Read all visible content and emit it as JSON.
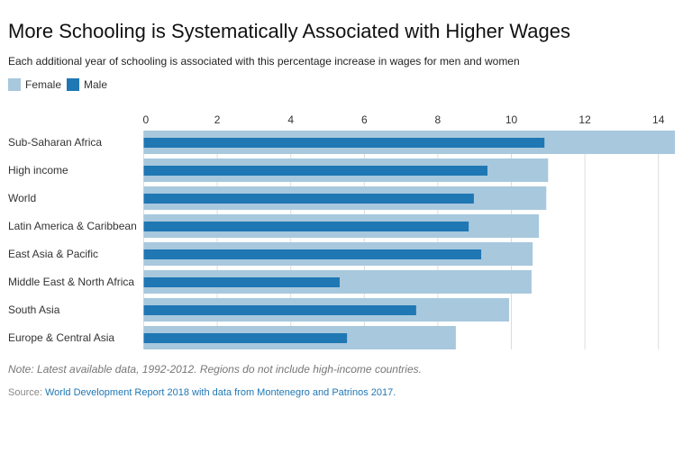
{
  "chart_data": {
    "type": "bar",
    "orientation": "horizontal",
    "title": "More Schooling is Systematically Associated with Higher Wages",
    "subtitle": "Each additional year of schooling is associated with this percentage increase in wages for men and women",
    "xlabel": "",
    "ylabel": "",
    "xlim": [
      0,
      14.5
    ],
    "xticks": [
      0,
      2,
      4,
      6,
      8,
      10,
      12,
      14
    ],
    "grid": true,
    "legend_position": "top-left",
    "categories": [
      "Sub-Saharan Africa",
      "High income",
      "World",
      "Latin America & Caribbean",
      "East Asia & Pacific",
      "Middle East & North Africa",
      "South Asia",
      "Europe & Central Asia"
    ],
    "series": [
      {
        "name": "Female",
        "color": "#a8c8dd",
        "values": [
          14.45,
          11.0,
          10.95,
          10.75,
          10.58,
          10.55,
          9.94,
          8.49
        ]
      },
      {
        "name": "Male",
        "color": "#1f77b4",
        "values": [
          10.9,
          9.35,
          8.98,
          8.84,
          9.18,
          5.33,
          7.41,
          5.53
        ]
      }
    ],
    "note": "Note: Latest available data, 1992-2012. Regions do not include high-income countries.",
    "source_label": "Source:",
    "source_text": "World Development Report 2018 with data from Montenegro and Patrinos 2017."
  }
}
